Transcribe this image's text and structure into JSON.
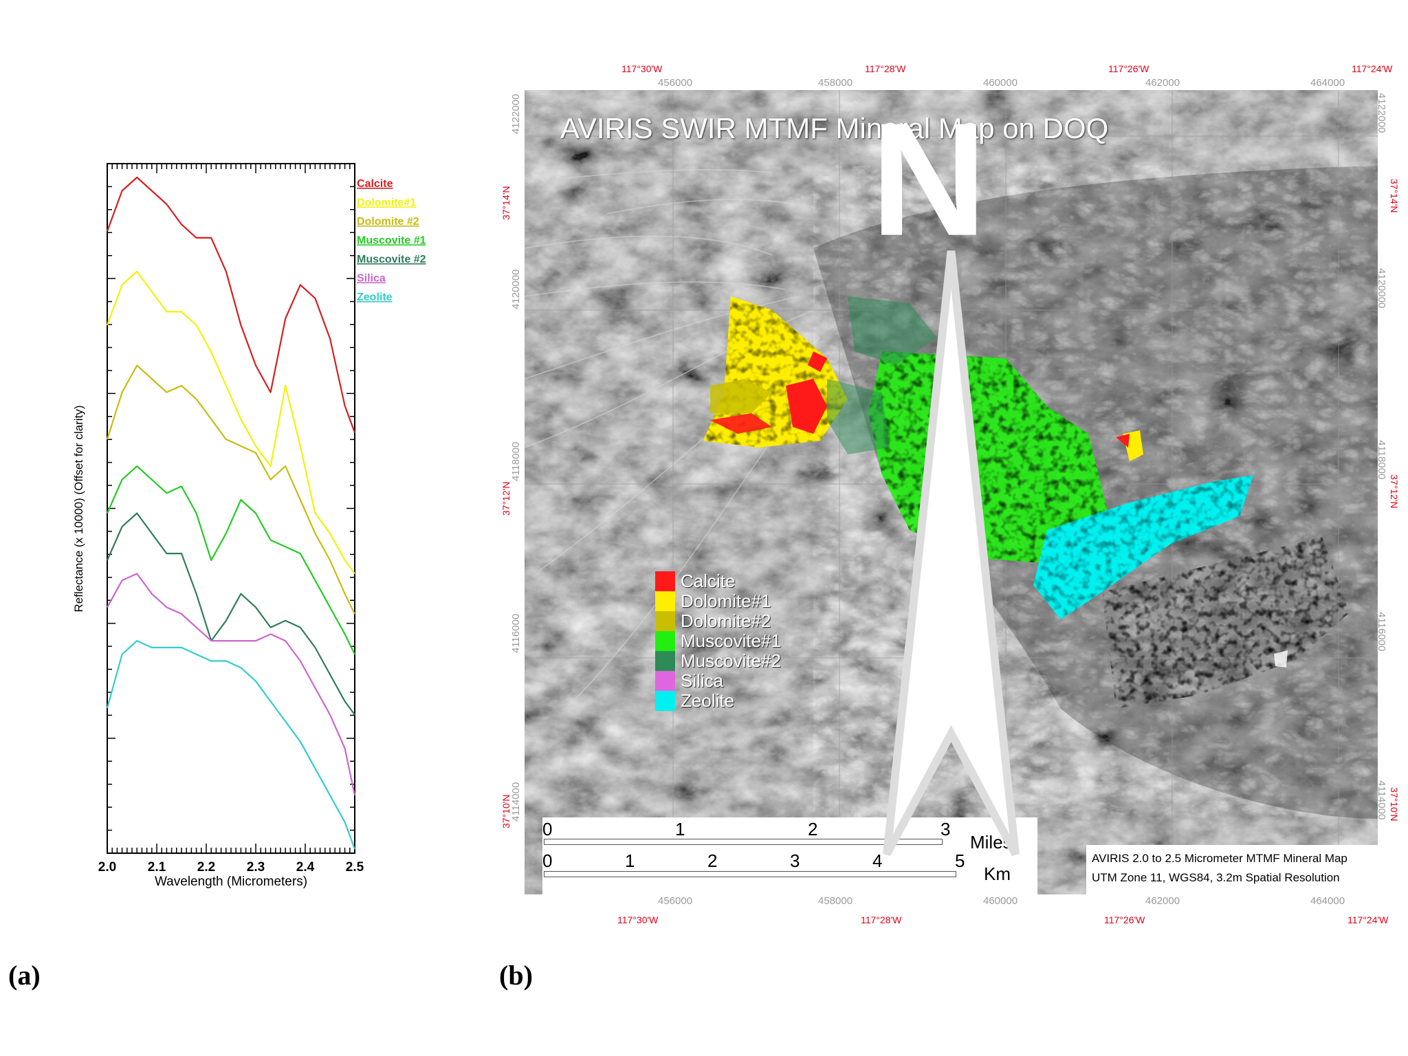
{
  "panel_a": {
    "label": "(a)",
    "chart_data": {
      "type": "line",
      "xlabel": "Wavelength (Micrometers)",
      "ylabel": "Reflectance (x 10000) (Offset for clarity)",
      "xlim": [
        2.0,
        2.5
      ],
      "x_ticks": [
        "2.0",
        "2.1",
        "2.2",
        "2.3",
        "2.4",
        "2.5"
      ],
      "y_tick_labels": false,
      "grid": false,
      "legend_position": "right, outside",
      "x": [
        2.0,
        2.03,
        2.06,
        2.09,
        2.12,
        2.15,
        2.18,
        2.21,
        2.24,
        2.27,
        2.3,
        2.33,
        2.36,
        2.39,
        2.42,
        2.45,
        2.48,
        2.5
      ],
      "series": [
        {
          "name": "Calcite",
          "color": "#d42020",
          "values": [
            0.92,
            0.98,
            1.0,
            0.98,
            0.96,
            0.93,
            0.91,
            0.91,
            0.86,
            0.78,
            0.72,
            0.68,
            0.79,
            0.84,
            0.82,
            0.76,
            0.66,
            0.62
          ]
        },
        {
          "name": "Dolomite#1",
          "color": "#f2f20a",
          "values": [
            0.78,
            0.84,
            0.86,
            0.83,
            0.8,
            0.8,
            0.78,
            0.74,
            0.69,
            0.64,
            0.6,
            0.57,
            0.69,
            0.6,
            0.5,
            0.47,
            0.43,
            0.41
          ]
        },
        {
          "name": "Dolomite #2",
          "color": "#c8bc10",
          "values": [
            0.61,
            0.68,
            0.72,
            0.7,
            0.68,
            0.69,
            0.67,
            0.64,
            0.61,
            0.6,
            0.59,
            0.55,
            0.57,
            0.52,
            0.47,
            0.43,
            0.38,
            0.35
          ]
        },
        {
          "name": "Muscovite #1",
          "color": "#22cc22",
          "values": [
            0.5,
            0.55,
            0.57,
            0.55,
            0.53,
            0.54,
            0.5,
            0.43,
            0.47,
            0.52,
            0.5,
            0.46,
            0.45,
            0.44,
            0.4,
            0.36,
            0.32,
            0.29
          ]
        },
        {
          "name": "Muscovite #2",
          "color": "#2e7d5a",
          "values": [
            0.43,
            0.48,
            0.5,
            0.47,
            0.44,
            0.44,
            0.38,
            0.31,
            0.34,
            0.38,
            0.36,
            0.33,
            0.34,
            0.33,
            0.3,
            0.26,
            0.22,
            0.2
          ]
        },
        {
          "name": "Silica",
          "color": "#cc66cc",
          "values": [
            0.36,
            0.4,
            0.41,
            0.38,
            0.36,
            0.35,
            0.33,
            0.31,
            0.31,
            0.31,
            0.31,
            0.32,
            0.31,
            0.28,
            0.24,
            0.2,
            0.15,
            0.08
          ]
        },
        {
          "name": "Zeolite",
          "color": "#33cccc",
          "values": [
            0.21,
            0.29,
            0.31,
            0.3,
            0.3,
            0.3,
            0.29,
            0.28,
            0.28,
            0.27,
            0.25,
            0.22,
            0.19,
            0.16,
            0.12,
            0.08,
            0.04,
            0.0
          ]
        }
      ]
    }
  },
  "panel_b": {
    "label": "(b)",
    "title": "AVIRIS SWIR MTMF Mineral Map on DOQ",
    "legend": [
      {
        "label": "Calcite",
        "color": "#ff1a1a"
      },
      {
        "label": "Dolomite#1",
        "color": "#ffee00"
      },
      {
        "label": "Dolomite#2",
        "color": "#c9bf00"
      },
      {
        "label": "Muscovite#1",
        "color": "#22ee11"
      },
      {
        "label": "Muscovite#2",
        "color": "#2e8b57"
      },
      {
        "label": "Silica",
        "color": "#e066e0"
      },
      {
        "label": "Zeolite",
        "color": "#00f0f0"
      }
    ],
    "longitude_labels": [
      "117°30'W",
      "117°28'W",
      "117°26'W",
      "117°24'W"
    ],
    "latitude_labels": [
      "37°14'N",
      "37°12'N",
      "37°10'N"
    ],
    "easting_labels": [
      "456000",
      "458000",
      "460000",
      "462000",
      "464000"
    ],
    "northing_labels": [
      "4122000",
      "4120000",
      "4118000",
      "4116000",
      "4114000"
    ],
    "scale": {
      "miles_ticks": [
        "0",
        "1",
        "2",
        "3"
      ],
      "miles_unit": "Miles",
      "km_ticks": [
        "0",
        "1",
        "2",
        "3",
        "4",
        "5"
      ],
      "km_unit": "Km",
      "north_label": "N"
    },
    "info_line1": "AVIRIS 2.0 to 2.5 Micrometer MTMF Mineral Map",
    "info_line2": "UTM Zone 11, WGS84, 3.2m Spatial Resolution"
  }
}
